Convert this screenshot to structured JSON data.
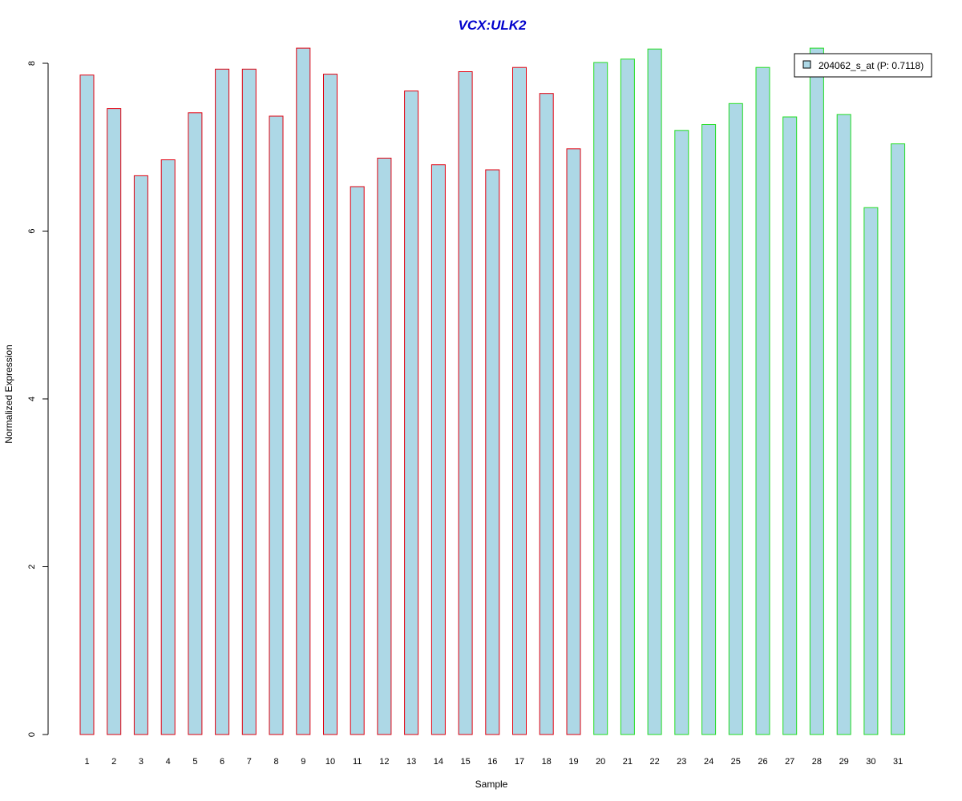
{
  "chart_data": {
    "type": "bar",
    "title": "VCX:ULK2",
    "xlabel": "Sample",
    "ylabel": "Normalized Expression",
    "ylim": [
      0,
      8.2
    ],
    "yticks": [
      "0",
      "2",
      "4",
      "6",
      "8"
    ],
    "ytick_values": [
      0,
      2,
      4,
      6,
      8
    ],
    "categories": [
      "1",
      "2",
      "3",
      "4",
      "5",
      "6",
      "7",
      "8",
      "9",
      "10",
      "11",
      "12",
      "13",
      "14",
      "15",
      "16",
      "17",
      "18",
      "19",
      "20",
      "21",
      "22",
      "23",
      "24",
      "25",
      "26",
      "27",
      "28",
      "29",
      "30",
      "31"
    ],
    "series": [
      {
        "name": "204062_s_at (P: 0.7118)",
        "values": [
          7.86,
          7.46,
          6.66,
          6.85,
          7.41,
          7.93,
          7.93,
          7.37,
          8.18,
          7.87,
          6.53,
          6.87,
          7.67,
          6.79,
          7.9,
          6.73,
          7.95,
          7.64,
          6.98,
          8.01,
          8.05,
          8.17,
          7.2,
          7.27,
          7.52,
          7.95,
          7.36,
          8.18,
          7.39,
          6.28,
          7.04
        ]
      }
    ],
    "group_border_colors": [
      "#e0000f",
      "#e0000f",
      "#e0000f",
      "#e0000f",
      "#e0000f",
      "#e0000f",
      "#e0000f",
      "#e0000f",
      "#e0000f",
      "#e0000f",
      "#e0000f",
      "#e0000f",
      "#e0000f",
      "#e0000f",
      "#e0000f",
      "#e0000f",
      "#e0000f",
      "#e0000f",
      "#e0000f",
      "#22dd22",
      "#22dd22",
      "#22dd22",
      "#22dd22",
      "#22dd22",
      "#22dd22",
      "#22dd22",
      "#22dd22",
      "#22dd22",
      "#22dd22",
      "#22dd22",
      "#22dd22"
    ],
    "bar_fill": "#add8e6",
    "title_color": "#0000cc",
    "legend_placement": "top-right",
    "grid": false
  }
}
